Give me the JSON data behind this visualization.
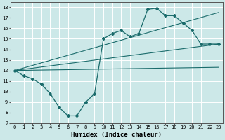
{
  "xlabel": "Humidex (Indice chaleur)",
  "background_color": "#cce8e8",
  "grid_color": "#ffffff",
  "line_color": "#1a6b6b",
  "xlim": [
    -0.5,
    23.5
  ],
  "ylim": [
    7,
    18.5
  ],
  "xticks": [
    0,
    1,
    2,
    3,
    4,
    5,
    6,
    7,
    8,
    9,
    10,
    11,
    12,
    13,
    14,
    15,
    16,
    17,
    18,
    19,
    20,
    21,
    22,
    23
  ],
  "yticks": [
    7,
    8,
    9,
    10,
    11,
    12,
    13,
    14,
    15,
    16,
    17,
    18
  ],
  "series1_x": [
    0,
    1,
    2,
    3,
    4,
    5,
    6,
    7,
    8,
    9,
    10,
    11,
    12,
    13,
    14,
    15,
    16,
    17,
    18,
    19,
    20,
    21,
    22,
    23
  ],
  "series1_y": [
    12.0,
    11.5,
    11.2,
    10.7,
    9.8,
    8.5,
    7.7,
    7.7,
    9.0,
    9.8,
    15.0,
    15.5,
    15.8,
    15.2,
    15.5,
    17.8,
    17.9,
    17.2,
    17.2,
    16.5,
    15.8,
    14.5,
    14.5,
    14.5
  ],
  "line1_x": [
    0,
    23
  ],
  "line1_y": [
    12.0,
    14.5
  ],
  "line2_x": [
    0,
    23
  ],
  "line2_y": [
    12.0,
    12.3
  ],
  "line3_x": [
    0,
    23
  ],
  "line3_y": [
    12.0,
    17.5
  ]
}
